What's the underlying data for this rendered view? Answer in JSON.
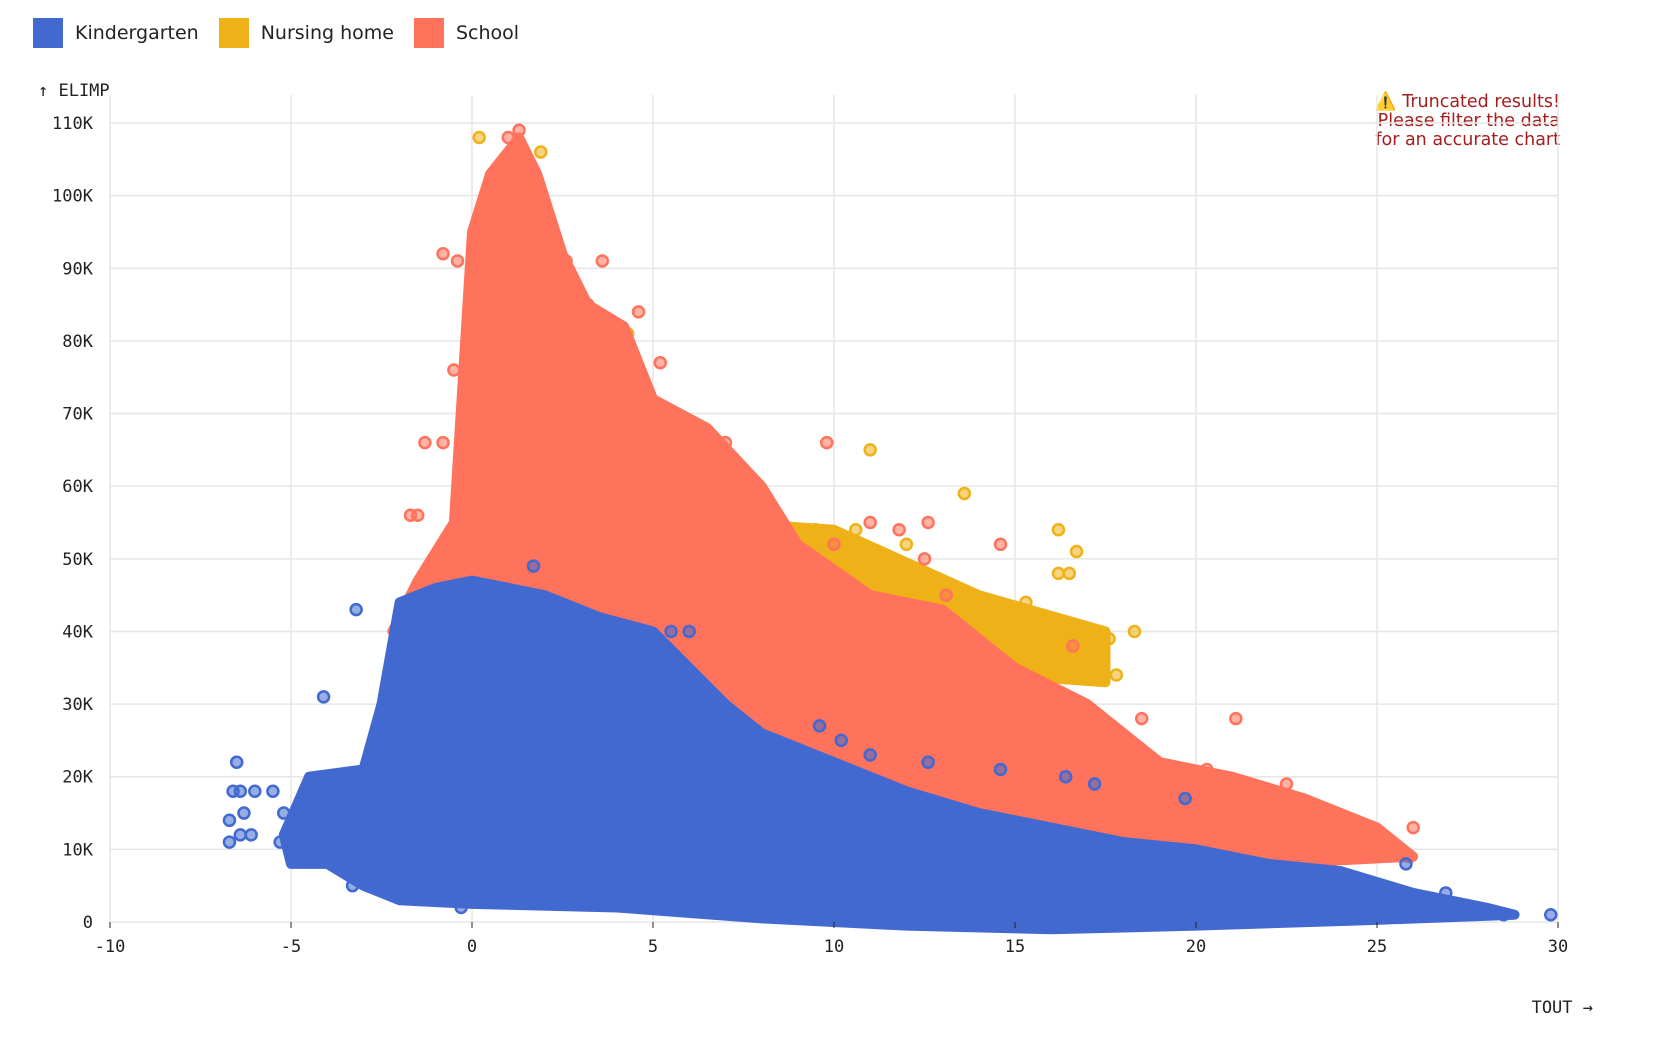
{
  "legend": [
    {
      "label": "Kindergarten",
      "color": "#4269d0"
    },
    {
      "label": "Nursing home",
      "color": "#efb118"
    },
    {
      "label": "School",
      "color": "#ff725c"
    }
  ],
  "warning": {
    "icon": "warning-triangle-icon",
    "line1": "Truncated results!",
    "line2": "Please filter the data",
    "line3": "for an accurate chart"
  },
  "chart_data": {
    "type": "scatter",
    "xlabel": "TOUT →",
    "ylabel": "↑ ELIMP",
    "xlim": [
      -10,
      30
    ],
    "ylim": [
      0,
      110000
    ],
    "grid": true,
    "legend_position": "top-left",
    "x_ticks": [
      "-10",
      "-5",
      "0",
      "5",
      "10",
      "15",
      "20",
      "25",
      "30"
    ],
    "y_ticks": [
      "0",
      "10K",
      "20K",
      "30K",
      "40K",
      "50K",
      "60K",
      "70K",
      "80K",
      "90K",
      "100K",
      "110K"
    ],
    "series": [
      {
        "name": "Nursing home",
        "color": "#efb118",
        "dense_region": [
          [
            7,
            55000
          ],
          [
            10,
            54000
          ],
          [
            14,
            45000
          ],
          [
            17.5,
            40000
          ],
          [
            17.5,
            33000
          ],
          [
            12,
            35000
          ],
          [
            8,
            42000
          ]
        ],
        "points": [
          [
            0.2,
            108000
          ],
          [
            1.9,
            106000
          ],
          [
            1.4,
            106000
          ],
          [
            1.5,
            96000
          ],
          [
            0.6,
            89000
          ],
          [
            2.7,
            88000
          ],
          [
            0.8,
            82000
          ],
          [
            4.3,
            81000
          ],
          [
            3.2,
            73000
          ],
          [
            11,
            65000
          ],
          [
            13.6,
            59000
          ],
          [
            16.2,
            54000
          ],
          [
            16.7,
            51000
          ],
          [
            9.5,
            54000
          ],
          [
            10.6,
            54000
          ],
          [
            12,
            52000
          ],
          [
            18.3,
            40000
          ],
          [
            17.8,
            34000
          ],
          [
            15.3,
            44000
          ],
          [
            14.5,
            43000
          ],
          [
            16.2,
            48000
          ],
          [
            16.5,
            48000
          ],
          [
            17.6,
            39000
          ],
          [
            13.7,
            45000
          ],
          [
            12.7,
            47000
          ],
          [
            11.2,
            46000
          ],
          [
            8.6,
            51000
          ],
          [
            6.6,
            61000
          ],
          [
            5.4,
            53000
          ],
          [
            7.6,
            56000
          ]
        ]
      },
      {
        "name": "School",
        "color": "#ff725c",
        "dense_region": [
          [
            -2.2,
            40000
          ],
          [
            -1.5,
            47000
          ],
          [
            -0.5,
            55000
          ],
          [
            0,
            95000
          ],
          [
            0.5,
            103000
          ],
          [
            1.3,
            108000
          ],
          [
            1.8,
            103000
          ],
          [
            2.5,
            92000
          ],
          [
            3.2,
            85000
          ],
          [
            4.2,
            82000
          ],
          [
            5,
            72000
          ],
          [
            6.5,
            68000
          ],
          [
            8,
            60000
          ],
          [
            9,
            52000
          ],
          [
            11,
            45000
          ],
          [
            13,
            43000
          ],
          [
            15,
            35000
          ],
          [
            17,
            30000
          ],
          [
            19,
            22000
          ],
          [
            21,
            20000
          ],
          [
            23,
            17000
          ],
          [
            25,
            13000
          ],
          [
            26,
            9000
          ],
          [
            22,
            8000
          ],
          [
            18,
            8000
          ],
          [
            14,
            9000
          ],
          [
            10,
            12000
          ],
          [
            7,
            18000
          ],
          [
            4,
            28000
          ],
          [
            2,
            38000
          ],
          [
            0,
            42000
          ],
          [
            -1,
            42000
          ]
        ],
        "points": [
          [
            -0.8,
            92000
          ],
          [
            -0.4,
            91000
          ],
          [
            1.3,
            109000
          ],
          [
            1,
            108000
          ],
          [
            2.6,
            91000
          ],
          [
            3.6,
            91000
          ],
          [
            3.2,
            85000
          ],
          [
            4.6,
            84000
          ],
          [
            5.2,
            77000
          ],
          [
            -1.3,
            66000
          ],
          [
            -0.8,
            66000
          ],
          [
            -0.5,
            76000
          ],
          [
            -1.7,
            56000
          ],
          [
            -1.5,
            56000
          ],
          [
            7,
            66000
          ],
          [
            7.5,
            62000
          ],
          [
            9.8,
            66000
          ],
          [
            11,
            55000
          ],
          [
            12.6,
            55000
          ],
          [
            12.5,
            50000
          ],
          [
            14.6,
            52000
          ],
          [
            16.6,
            38000
          ],
          [
            18.5,
            28000
          ],
          [
            21.1,
            28000
          ],
          [
            13.1,
            45000
          ],
          [
            11.8,
            54000
          ],
          [
            10,
            52000
          ],
          [
            26,
            13000
          ],
          [
            25.9,
            9000
          ],
          [
            24.5,
            13000
          ],
          [
            22.5,
            19000
          ],
          [
            20.3,
            21000
          ]
        ]
      },
      {
        "name": "Kindergarten",
        "color": "#4269d0",
        "dense_region": [
          [
            -5,
            8000
          ],
          [
            -5.2,
            12000
          ],
          [
            -4.5,
            20000
          ],
          [
            -3,
            21000
          ],
          [
            -2.5,
            30000
          ],
          [
            -2,
            44000
          ],
          [
            -1,
            46000
          ],
          [
            0,
            47000
          ],
          [
            2,
            45000
          ],
          [
            3.5,
            42000
          ],
          [
            5,
            40000
          ],
          [
            6,
            35000
          ],
          [
            7,
            30000
          ],
          [
            8,
            26000
          ],
          [
            10,
            22000
          ],
          [
            12,
            18000
          ],
          [
            14,
            15000
          ],
          [
            16,
            13000
          ],
          [
            18,
            11000
          ],
          [
            20,
            10000
          ],
          [
            22,
            8000
          ],
          [
            24,
            7000
          ],
          [
            26,
            4000
          ],
          [
            28,
            2000
          ],
          [
            28.8,
            1000
          ],
          [
            25,
            300
          ],
          [
            20,
            -500
          ],
          [
            16,
            -1000
          ],
          [
            12,
            -500
          ],
          [
            8,
            500
          ],
          [
            4,
            2000
          ],
          [
            0,
            2500
          ],
          [
            -2,
            3000
          ],
          [
            -3,
            5000
          ],
          [
            -4,
            8000
          ]
        ],
        "points": [
          [
            -6.5,
            22000
          ],
          [
            -6.6,
            18000
          ],
          [
            -6.4,
            18000
          ],
          [
            -6,
            18000
          ],
          [
            -5.5,
            18000
          ],
          [
            -6.7,
            14000
          ],
          [
            -6.3,
            15000
          ],
          [
            -6.7,
            11000
          ],
          [
            -6.4,
            12000
          ],
          [
            -6.1,
            12000
          ],
          [
            -5.2,
            15000
          ],
          [
            -5.3,
            11000
          ],
          [
            -4.1,
            31000
          ],
          [
            -3.2,
            43000
          ],
          [
            -3.3,
            5000
          ],
          [
            -0.3,
            2000
          ],
          [
            29.8,
            1000
          ],
          [
            28.5,
            1000
          ],
          [
            27.5,
            2000
          ],
          [
            26.9,
            4000
          ],
          [
            25.8,
            8000
          ],
          [
            14.6,
            21000
          ],
          [
            16.4,
            20000
          ],
          [
            17.2,
            19000
          ],
          [
            19.7,
            17000
          ],
          [
            12.6,
            22000
          ],
          [
            10.2,
            25000
          ],
          [
            9.6,
            27000
          ],
          [
            11,
            23000
          ],
          [
            5.5,
            40000
          ],
          [
            6,
            40000
          ],
          [
            1.7,
            49000
          ]
        ]
      }
    ]
  }
}
